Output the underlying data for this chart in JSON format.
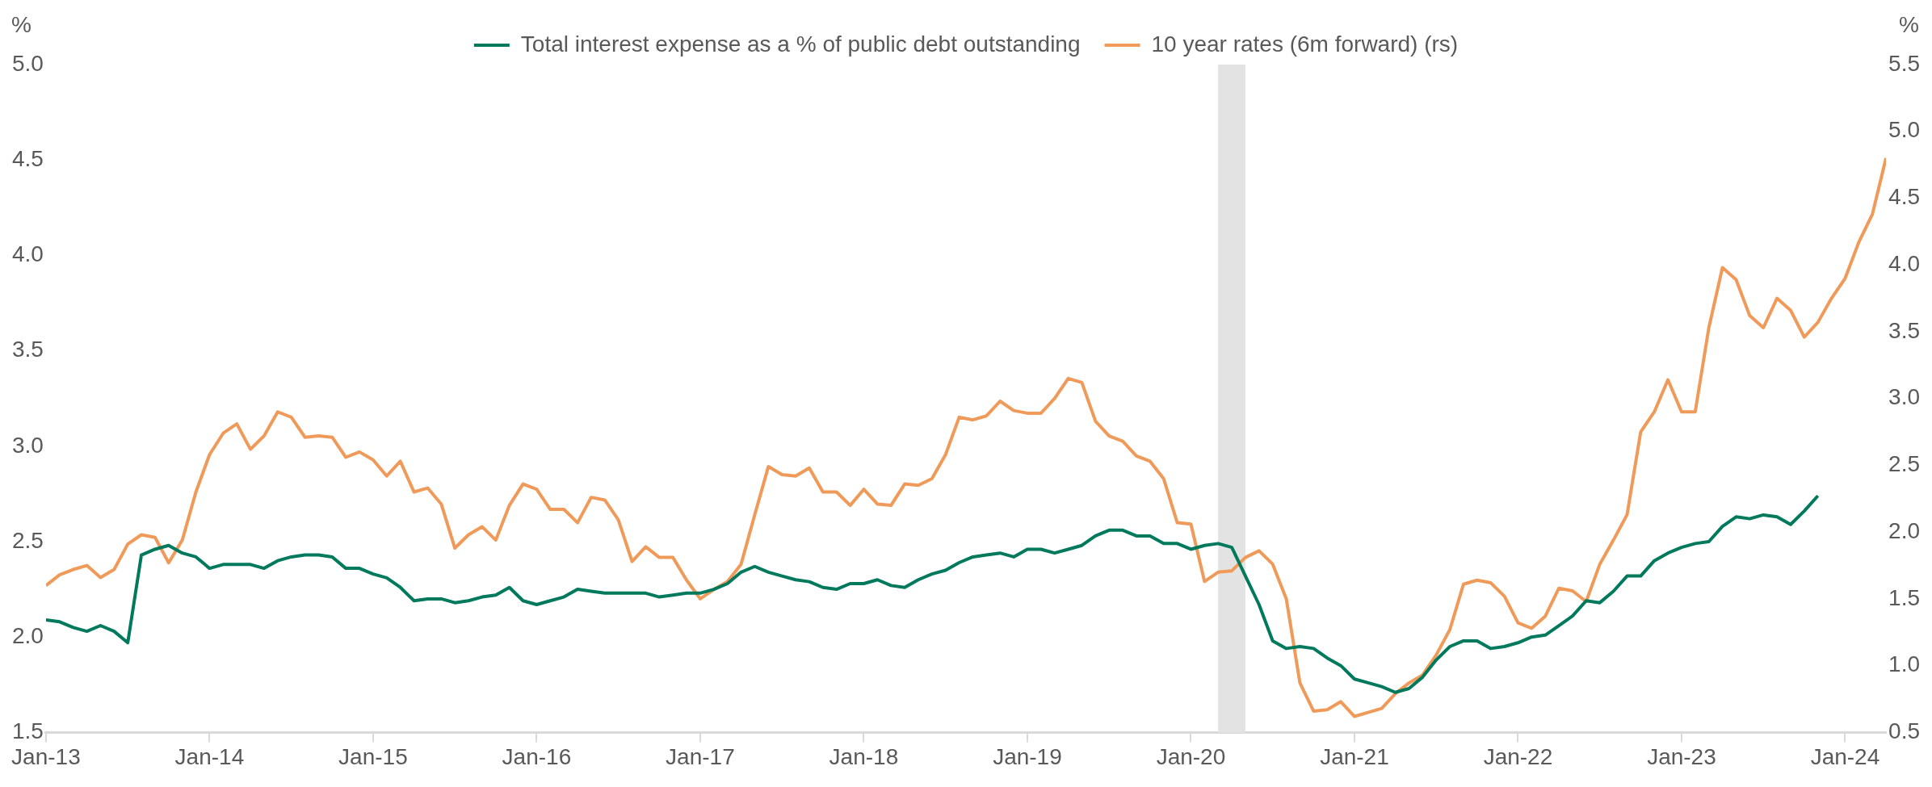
{
  "chart_data": {
    "type": "line",
    "ylabel": "%",
    "y2label": "%",
    "legend": "top",
    "grid": false,
    "marker": "none",
    "line_style": "solid",
    "x": [
      "2013-01",
      "2013-02",
      "2013-03",
      "2013-04",
      "2013-05",
      "2013-06",
      "2013-07",
      "2013-08",
      "2013-09",
      "2013-10",
      "2013-11",
      "2013-12",
      "2014-01",
      "2014-02",
      "2014-03",
      "2014-04",
      "2014-05",
      "2014-06",
      "2014-07",
      "2014-08",
      "2014-09",
      "2014-10",
      "2014-11",
      "2014-12",
      "2015-01",
      "2015-02",
      "2015-03",
      "2015-04",
      "2015-05",
      "2015-06",
      "2015-07",
      "2015-08",
      "2015-09",
      "2015-10",
      "2015-11",
      "2015-12",
      "2016-01",
      "2016-02",
      "2016-03",
      "2016-04",
      "2016-05",
      "2016-06",
      "2016-07",
      "2016-08",
      "2016-09",
      "2016-10",
      "2016-11",
      "2016-12",
      "2017-01",
      "2017-02",
      "2017-03",
      "2017-04",
      "2017-05",
      "2017-06",
      "2017-07",
      "2017-08",
      "2017-09",
      "2017-10",
      "2017-11",
      "2017-12",
      "2018-01",
      "2018-02",
      "2018-03",
      "2018-04",
      "2018-05",
      "2018-06",
      "2018-07",
      "2018-08",
      "2018-09",
      "2018-10",
      "2018-11",
      "2018-12",
      "2019-01",
      "2019-02",
      "2019-03",
      "2019-04",
      "2019-05",
      "2019-06",
      "2019-07",
      "2019-08",
      "2019-09",
      "2019-10",
      "2019-11",
      "2019-12",
      "2020-01",
      "2020-02",
      "2020-03",
      "2020-04",
      "2020-05",
      "2020-06",
      "2020-07",
      "2020-08",
      "2020-09",
      "2020-10",
      "2020-11",
      "2020-12",
      "2021-01",
      "2021-02",
      "2021-03",
      "2021-04",
      "2021-05",
      "2021-06",
      "2021-07",
      "2021-08",
      "2021-09",
      "2021-10",
      "2021-11",
      "2021-12",
      "2022-01",
      "2022-02",
      "2022-03",
      "2022-04",
      "2022-05",
      "2022-06",
      "2022-07",
      "2022-08",
      "2022-09",
      "2022-10",
      "2022-11",
      "2022-12",
      "2023-01",
      "2023-02",
      "2023-03",
      "2023-04",
      "2023-05",
      "2023-06",
      "2023-07",
      "2023-08",
      "2023-09",
      "2023-10",
      "2023-11",
      "2023-12",
      "2024-01",
      "2024-02",
      "2024-03",
      "2024-04"
    ],
    "series": [
      {
        "name": "Total interest expense as a % of public debt outstanding",
        "color": "#00795c",
        "values": [
          2.09,
          2.08,
          2.05,
          2.03,
          2.06,
          2.03,
          1.97,
          2.43,
          2.46,
          2.48,
          2.44,
          2.42,
          2.36,
          2.38,
          2.38,
          2.38,
          2.36,
          2.4,
          2.42,
          2.43,
          2.43,
          2.42,
          2.36,
          2.36,
          2.33,
          2.31,
          2.26,
          2.19,
          2.2,
          2.2,
          2.18,
          2.19,
          2.21,
          2.22,
          2.26,
          2.19,
          2.17,
          2.19,
          2.21,
          2.25,
          2.24,
          2.23,
          2.23,
          2.23,
          2.23,
          2.21,
          2.22,
          2.23,
          2.23,
          2.25,
          2.28,
          2.34,
          2.37,
          2.34,
          2.32,
          2.3,
          2.29,
          2.26,
          2.25,
          2.28,
          2.28,
          2.3,
          2.27,
          2.26,
          2.3,
          2.33,
          2.35,
          2.39,
          2.42,
          2.43,
          2.44,
          2.42,
          2.46,
          2.46,
          2.44,
          2.46,
          2.48,
          2.53,
          2.56,
          2.56,
          2.53,
          2.53,
          2.49,
          2.49,
          2.46,
          2.48,
          2.49,
          2.47,
          2.32,
          2.17,
          1.98,
          1.94,
          1.95,
          1.94,
          1.89,
          1.85,
          1.78,
          1.76,
          1.74,
          1.71,
          1.73,
          1.79,
          1.88,
          1.95,
          1.98,
          1.98,
          1.94,
          1.95,
          1.97,
          2.0,
          2.01,
          2.06,
          2.11,
          2.19,
          2.18,
          2.24,
          2.32,
          2.32,
          2.4,
          2.44,
          2.47,
          2.49,
          2.5,
          2.58,
          2.63,
          2.62,
          2.64,
          2.63,
          2.59,
          2.66,
          2.74,
          null,
          null,
          null,
          null,
          null
        ]
      },
      {
        "name": "10 year rates (6m forward) (rs)",
        "color": "#f09a5a",
        "axis": "y2",
        "values": [
          1.6,
          1.68,
          1.72,
          1.75,
          1.66,
          1.72,
          1.91,
          1.98,
          1.96,
          1.77,
          1.94,
          2.3,
          2.58,
          2.74,
          2.81,
          2.62,
          2.72,
          2.9,
          2.86,
          2.71,
          2.72,
          2.71,
          2.56,
          2.6,
          2.54,
          2.42,
          2.53,
          2.3,
          2.33,
          2.21,
          1.88,
          1.98,
          2.04,
          1.94,
          2.2,
          2.36,
          2.32,
          2.17,
          2.17,
          2.07,
          2.26,
          2.24,
          2.09,
          1.78,
          1.89,
          1.81,
          1.81,
          1.64,
          1.5,
          1.57,
          1.63,
          1.76,
          2.13,
          2.49,
          2.43,
          2.42,
          2.48,
          2.3,
          2.3,
          2.2,
          2.32,
          2.21,
          2.2,
          2.36,
          2.35,
          2.4,
          2.58,
          2.86,
          2.84,
          2.87,
          2.98,
          2.91,
          2.89,
          2.89,
          3.0,
          3.15,
          3.12,
          2.83,
          2.72,
          2.68,
          2.57,
          2.53,
          2.4,
          2.07,
          2.06,
          1.63,
          1.7,
          1.71,
          1.81,
          1.86,
          1.76,
          1.5,
          0.87,
          0.66,
          0.67,
          0.73,
          0.62,
          0.65,
          0.68,
          0.79,
          0.87,
          0.93,
          1.08,
          1.27,
          1.61,
          1.64,
          1.62,
          1.52,
          1.32,
          1.28,
          1.37,
          1.58,
          1.56,
          1.48,
          1.76,
          1.94,
          2.13,
          2.75,
          2.9,
          3.14,
          2.9,
          2.9,
          3.53,
          3.98,
          3.89,
          3.62,
          3.53,
          3.75,
          3.66,
          3.46,
          3.57,
          3.75,
          3.9,
          4.17,
          4.38,
          4.8
        ]
      }
    ],
    "xlim": [
      "2013-01",
      "2024-04"
    ],
    "xticks": [
      {
        "value": "2013-01",
        "label": "Jan-13"
      },
      {
        "value": "2014-01",
        "label": "Jan-14"
      },
      {
        "value": "2015-01",
        "label": "Jan-15"
      },
      {
        "value": "2016-01",
        "label": "Jan-16"
      },
      {
        "value": "2017-01",
        "label": "Jan-17"
      },
      {
        "value": "2018-01",
        "label": "Jan-18"
      },
      {
        "value": "2019-01",
        "label": "Jan-19"
      },
      {
        "value": "2020-01",
        "label": "Jan-20"
      },
      {
        "value": "2021-01",
        "label": "Jan-21"
      },
      {
        "value": "2022-01",
        "label": "Jan-22"
      },
      {
        "value": "2023-01",
        "label": "Jan-23"
      },
      {
        "value": "2024-01",
        "label": "Jan-24"
      }
    ],
    "ylim": [
      1.5,
      5
    ],
    "yticks": [
      1.5,
      {
        "value": 2,
        "label": "2.0"
      },
      2.5,
      {
        "value": 3,
        "label": "3.0"
      },
      3.5,
      {
        "value": 4,
        "label": "4.0"
      },
      4.5,
      {
        "value": 5,
        "label": "5.0"
      }
    ],
    "y2lim": [
      0.5,
      5.5
    ],
    "y2ticks": [
      0.5,
      {
        "value": 1,
        "label": "1.0"
      },
      1.5,
      {
        "value": 2,
        "label": "2.0"
      },
      2.5,
      {
        "value": 3,
        "label": "3.0"
      },
      3.5,
      {
        "value": 4,
        "label": "4.0"
      },
      4.5,
      {
        "value": 5,
        "label": "5.0"
      },
      5.5
    ],
    "bands": [
      {
        "axis": "x",
        "from": "2020-03",
        "to": "2020-05",
        "color": "#e3e3e3"
      }
    ]
  }
}
